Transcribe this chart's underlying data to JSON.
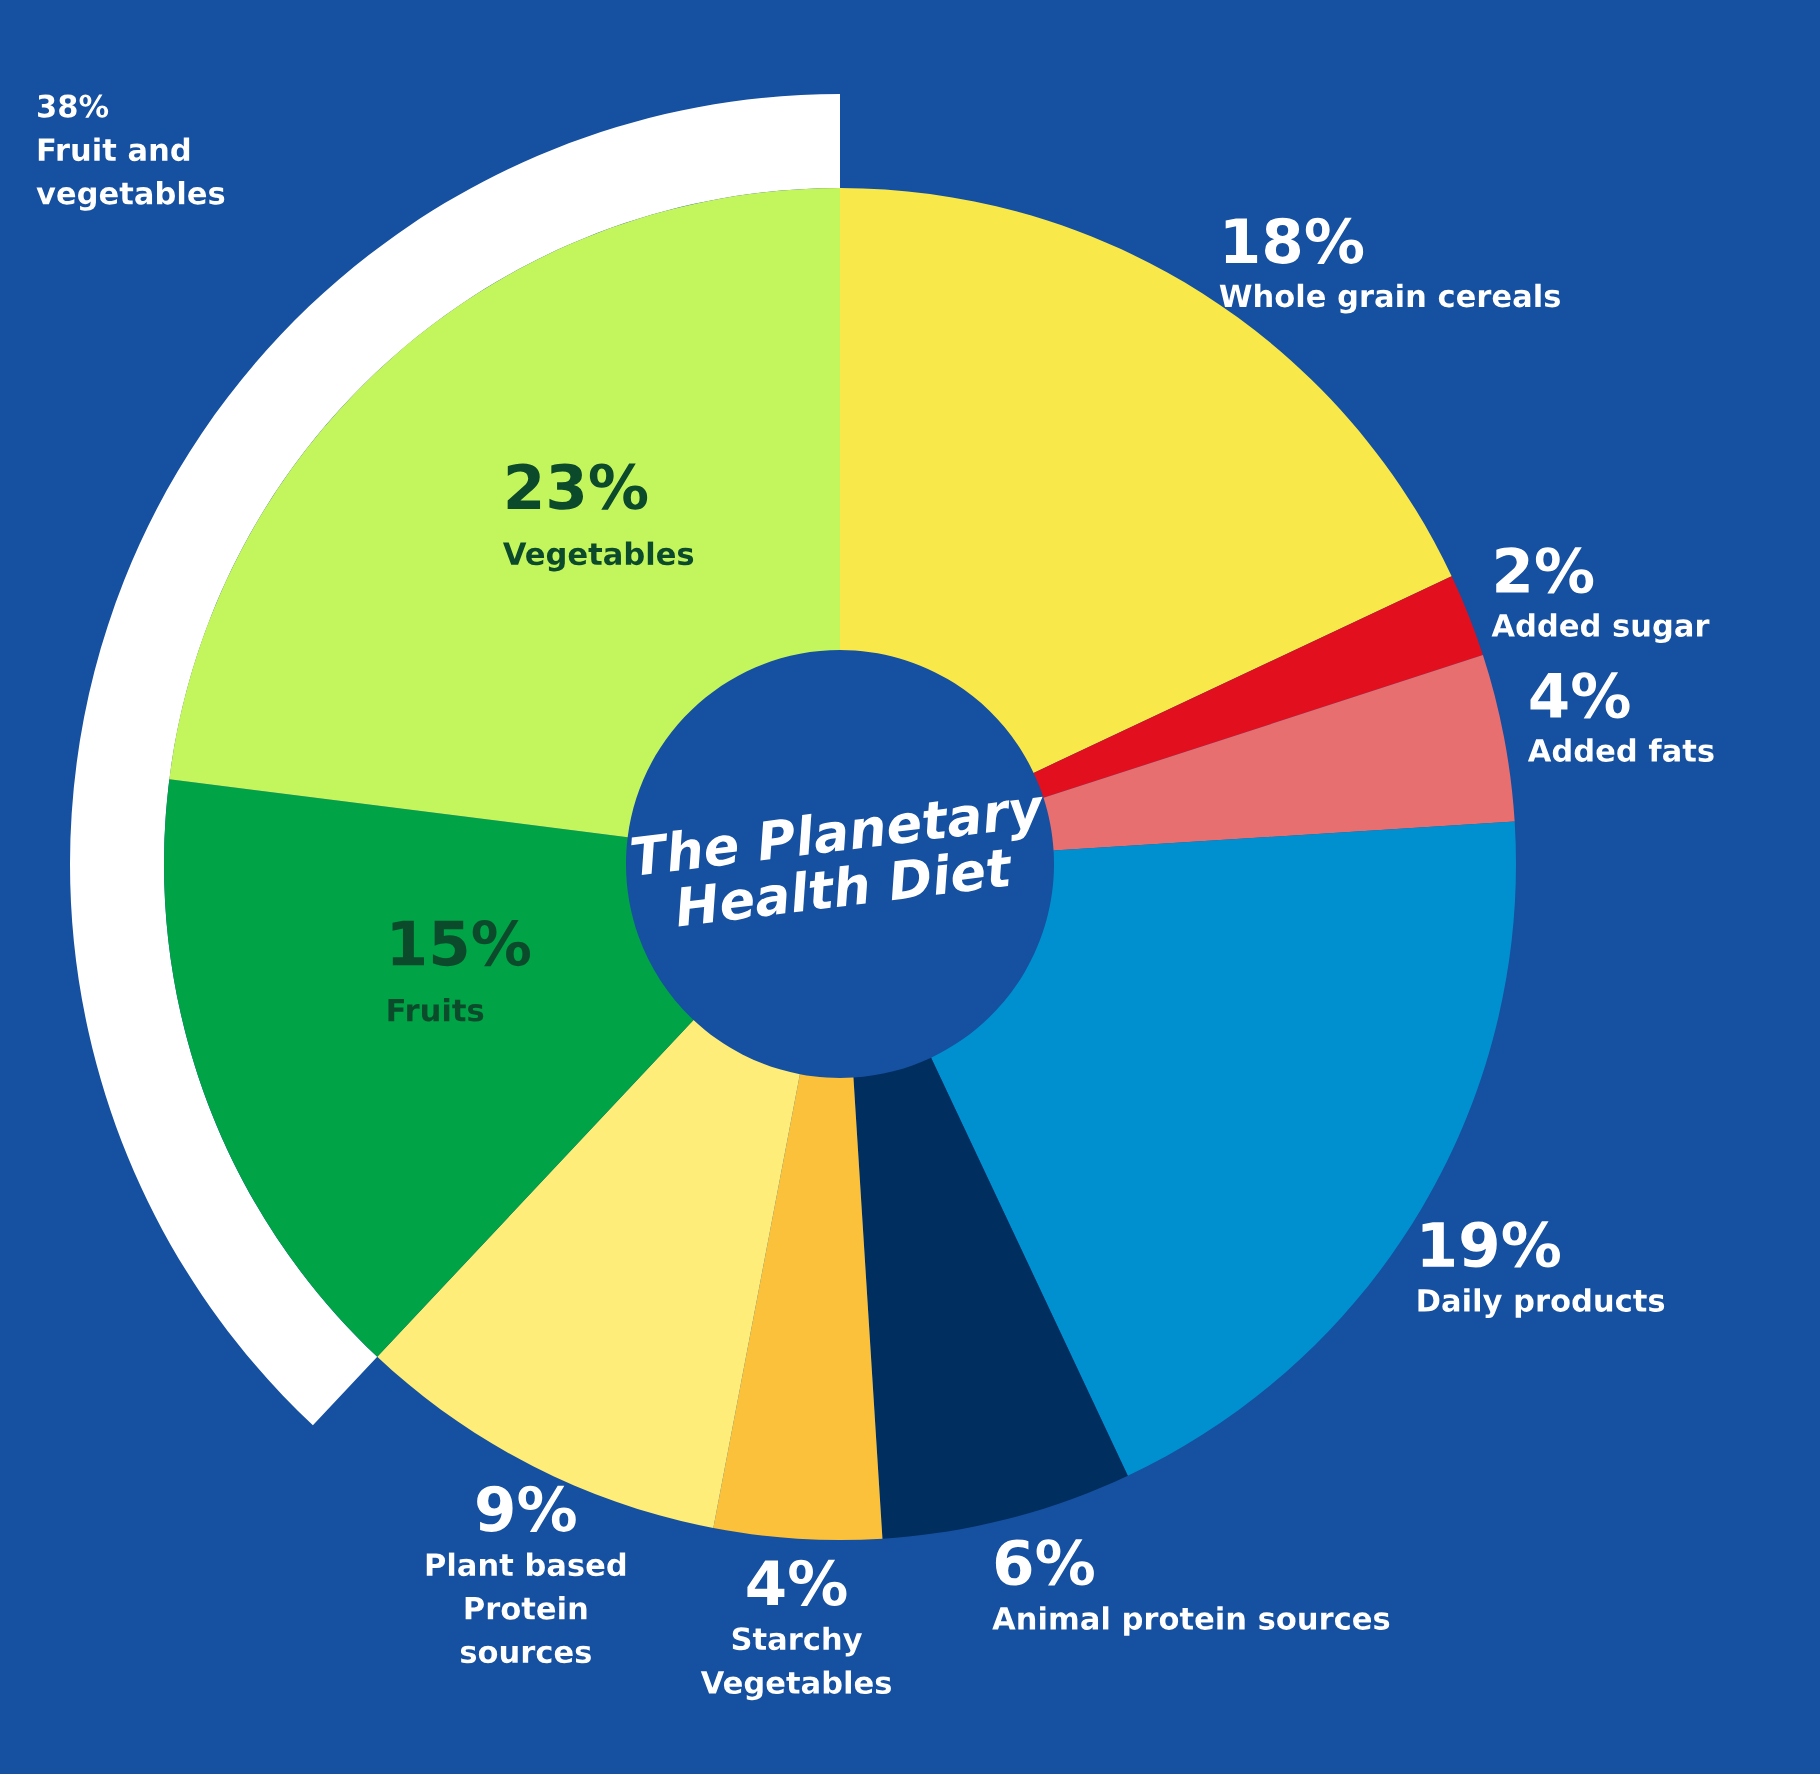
{
  "chart_data": {
    "type": "donut",
    "title": "The Planetary\nHealth Diet",
    "categories": [
      "Whole grain cereals",
      "Added sugar",
      "Added fats",
      "Daily products",
      "Animal protein sources",
      "Starchy\nVegetables",
      "Plant based\nProtein\nsources",
      "Fruits",
      "Vegetables"
    ],
    "values": [
      18,
      2,
      4,
      19,
      6,
      4,
      9,
      15,
      23
    ],
    "colors": [
      "#f9e84a",
      "#e2101f",
      "#e86f6f",
      "#0090cf",
      "#002e5e",
      "#fcc13a",
      "#feed78",
      "#00a346",
      "#c3f55c"
    ],
    "value_labels": [
      "18%",
      "2%",
      "4%",
      "19%",
      "6%",
      "4%",
      "9%",
      "15%",
      "23%"
    ],
    "annotations": [
      "38%\nFruit and\nvegetables"
    ]
  }
}
